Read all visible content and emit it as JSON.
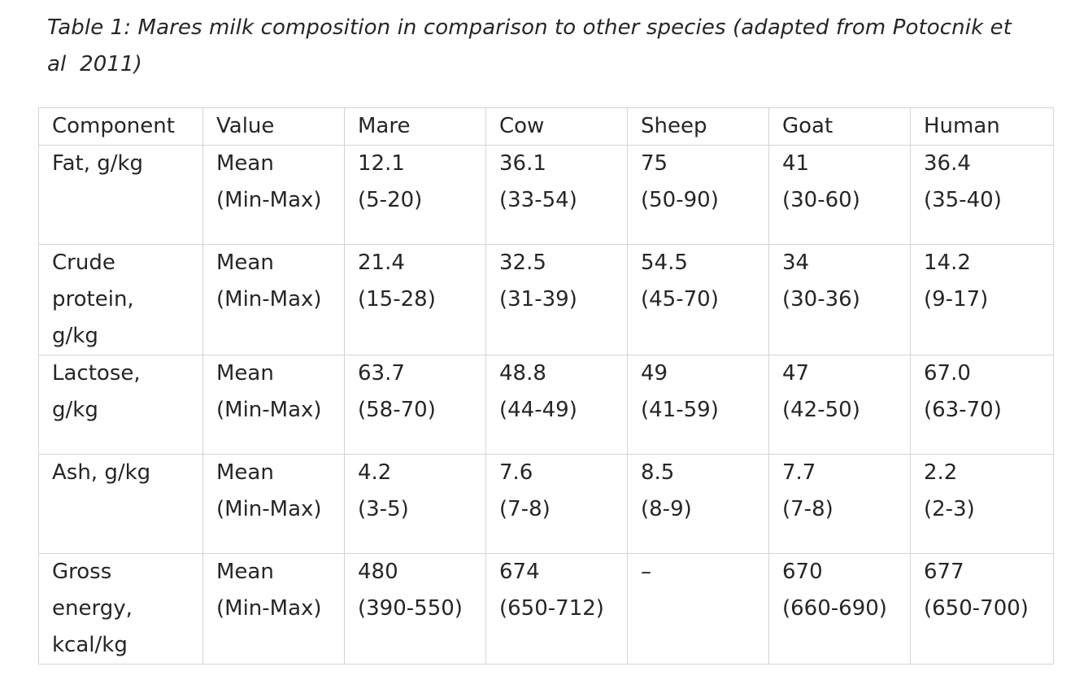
{
  "caption": {
    "line1": "Table 1: Mares milk composition in comparison to other species (adapted from Potocnik et",
    "line2": "al  2011)"
  },
  "table": {
    "headers": [
      "Component",
      "Value",
      "Mare",
      "Cow",
      "Sheep",
      "Goat",
      "Human"
    ],
    "rows": [
      {
        "component": [
          "Fat, g/kg"
        ],
        "value": [
          "Mean",
          "(Min-Max)"
        ],
        "mare": [
          "12.1",
          "(5-20)"
        ],
        "cow": [
          "36.1",
          "(33-54)"
        ],
        "sheep": [
          "75",
          "(50-90)"
        ],
        "goat": [
          "41",
          "(30-60)"
        ],
        "human": [
          "36.4",
          "(35-40)"
        ]
      },
      {
        "component": [
          "Crude",
          "protein,",
          "g/kg"
        ],
        "value": [
          "Mean",
          "(Min-Max)"
        ],
        "mare": [
          "21.4",
          "(15-28)"
        ],
        "cow": [
          "32.5",
          "(31-39)"
        ],
        "sheep": [
          "54.5",
          "(45-70)"
        ],
        "goat": [
          "34",
          "(30-36)"
        ],
        "human": [
          "14.2",
          "(9-17)"
        ]
      },
      {
        "component": [
          "Lactose,",
          "g/kg"
        ],
        "value": [
          "Mean",
          "(Min-Max)"
        ],
        "mare": [
          "63.7",
          "(58-70)"
        ],
        "cow": [
          "48.8",
          "(44-49)"
        ],
        "sheep": [
          "49",
          "(41-59)"
        ],
        "goat": [
          "47",
          "(42-50)"
        ],
        "human": [
          "67.0",
          "(63-70)"
        ]
      },
      {
        "component": [
          "Ash, g/kg"
        ],
        "value": [
          "Mean",
          "(Min-Max)"
        ],
        "mare": [
          "4.2",
          "(3-5)"
        ],
        "cow": [
          "7.6",
          "(7-8)"
        ],
        "sheep": [
          "8.5",
          "(8-9)"
        ],
        "goat": [
          "7.7",
          "(7-8)"
        ],
        "human": [
          "2.2",
          "(2-3)"
        ]
      },
      {
        "component": [
          "Gross",
          "energy,",
          "kcal/kg"
        ],
        "value": [
          "Mean",
          "(Min-Max)"
        ],
        "mare": [
          "480",
          "(390-550)"
        ],
        "cow": [
          "674",
          "(650-712)"
        ],
        "sheep": [
          "–"
        ],
        "goat": [
          "670",
          "(660-690)"
        ],
        "human": [
          "677",
          "(650-700)"
        ]
      }
    ]
  }
}
